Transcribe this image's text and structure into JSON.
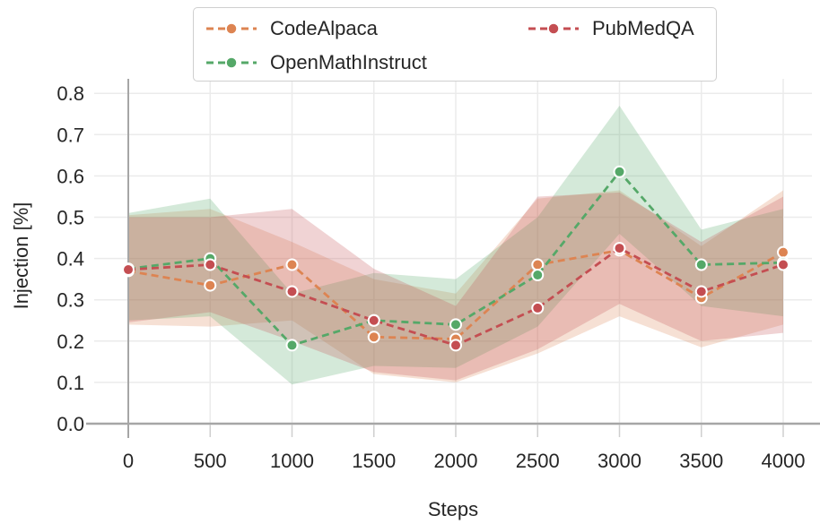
{
  "figure": {
    "background": "#ffffff",
    "text_color": "#262626",
    "grid_color": "#ebebeb",
    "axis_line_color": "#a6a6a6",
    "minor_tick_color": "#cfcfcf",
    "marker_edge_color": "#ffffff"
  },
  "legend": {
    "items": [
      {
        "label": "CodeAlpaca",
        "color": "#dd8452"
      },
      {
        "label": "OpenMathInstruct",
        "color": "#55a868"
      },
      {
        "label": "PubMedQA",
        "color": "#c44e52"
      }
    ]
  },
  "chart_data": {
    "type": "line",
    "title": "",
    "xlabel": "Steps",
    "ylabel": "Injection [%]",
    "line_style": "dashed",
    "marker": "circle",
    "grid": true,
    "legend_position": "top",
    "xlim": [
      -235,
      4225
    ],
    "ylim": [
      0.0,
      0.8
    ],
    "x": [
      0,
      500,
      1000,
      1500,
      2000,
      2500,
      3000,
      3500,
      4000
    ],
    "xtick_labels": [
      "0",
      "500",
      "1000",
      "1500",
      "2000",
      "2500",
      "3000",
      "3500",
      "4000"
    ],
    "yticks": [
      0.0,
      0.1,
      0.2,
      0.3,
      0.4,
      0.5,
      0.6,
      0.7,
      0.8
    ],
    "ytick_labels": [
      "0.0",
      "0.1",
      "0.2",
      "0.3",
      "0.4",
      "0.5",
      "0.6",
      "0.7",
      "0.8"
    ],
    "series": [
      {
        "name": "CodeAlpaca",
        "color": "#dd8452",
        "values": [
          0.37,
          0.335,
          0.385,
          0.21,
          0.205,
          0.385,
          0.42,
          0.305,
          0.415
        ],
        "band_low": [
          0.24,
          0.235,
          0.25,
          0.12,
          0.1,
          0.17,
          0.26,
          0.185,
          0.24
        ],
        "band_high": [
          0.505,
          0.52,
          0.44,
          0.35,
          0.315,
          0.545,
          0.565,
          0.43,
          0.565
        ]
      },
      {
        "name": "OpenMathInstruct",
        "color": "#55a868",
        "values": [
          0.375,
          0.4,
          0.19,
          0.25,
          0.24,
          0.36,
          0.61,
          0.385,
          0.39
        ],
        "band_low": [
          0.25,
          0.26,
          0.095,
          0.14,
          0.135,
          0.235,
          0.46,
          0.285,
          0.26
        ],
        "band_high": [
          0.51,
          0.545,
          0.315,
          0.365,
          0.35,
          0.5,
          0.77,
          0.47,
          0.52
        ]
      },
      {
        "name": "PubMedQA",
        "color": "#c44e52",
        "values": [
          0.373,
          0.385,
          0.32,
          0.25,
          0.19,
          0.28,
          0.425,
          0.32,
          0.385
        ],
        "band_low": [
          0.245,
          0.27,
          0.2,
          0.125,
          0.105,
          0.18,
          0.29,
          0.2,
          0.22
        ],
        "band_high": [
          0.5,
          0.5,
          0.52,
          0.375,
          0.285,
          0.55,
          0.56,
          0.44,
          0.55
        ]
      }
    ]
  }
}
